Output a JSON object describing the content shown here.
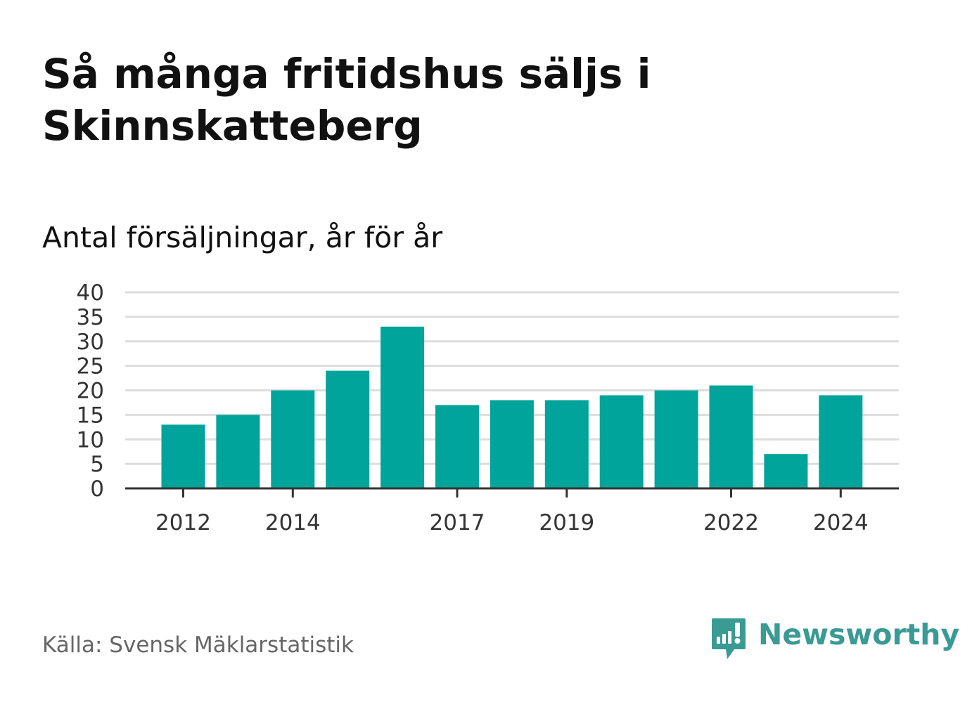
{
  "header": {
    "title": "Så många fritidshus säljs i Skinnskatteberg",
    "subtitle": "Antal försäljningar, år för år"
  },
  "footer": {
    "source": "Källa: Svensk Mäklarstatistik",
    "brand": "Newsworthy",
    "brand_icon": "bar-chart-speech-bubble-icon"
  },
  "colors": {
    "bar": "#00a49a",
    "grid": "#dddddd",
    "axis": "#333333",
    "text": "#111111",
    "muted": "#666666",
    "brand": "#3a9a94"
  },
  "chart_data": {
    "type": "bar",
    "title": "Så många fritidshus säljs i Skinnskatteberg",
    "subtitle": "Antal försäljningar, år för år",
    "categories": [
      2012,
      2013,
      2014,
      2015,
      2016,
      2017,
      2018,
      2019,
      2020,
      2021,
      2022,
      2023,
      2024
    ],
    "values": [
      13,
      15,
      20,
      24,
      33,
      17,
      18,
      18,
      19,
      20,
      21,
      7,
      19
    ],
    "x_tick_labels": [
      "2012",
      "2014",
      "2017",
      "2019",
      "2022",
      "2024"
    ],
    "y_ticks": [
      0,
      5,
      10,
      15,
      20,
      25,
      30,
      35,
      40
    ],
    "ylim": [
      0,
      40
    ],
    "xlabel": "",
    "ylabel": "",
    "grid": true,
    "legend": "none"
  }
}
